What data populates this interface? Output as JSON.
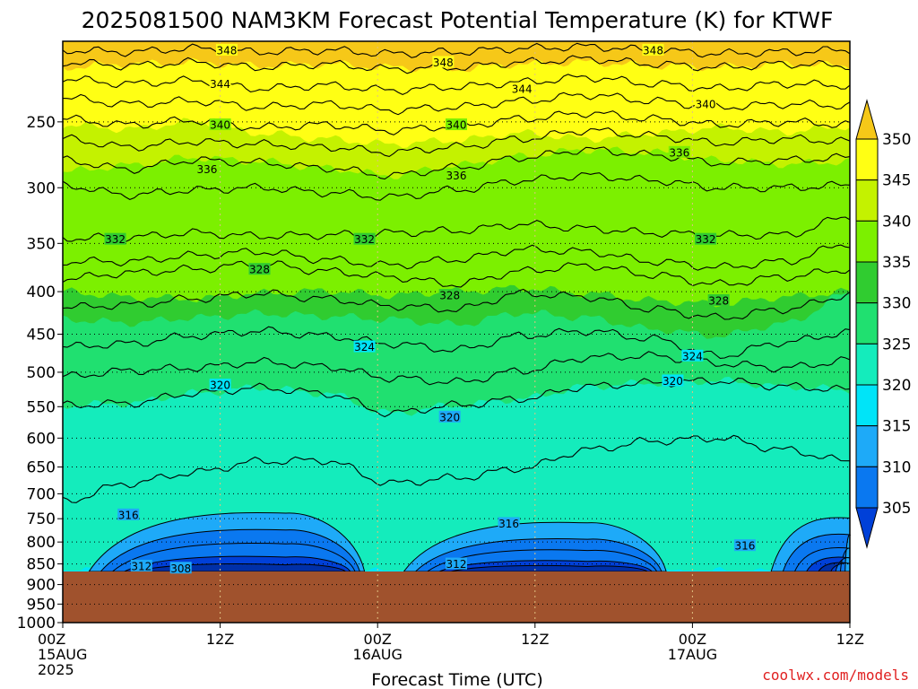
{
  "title": "2025081500 NAM3KM Forecast Potential Temperature (K) for KTWF",
  "credit": "coolwx.com/models",
  "chart_data": {
    "type": "contour",
    "title": "2025081500 NAM3KM Forecast Potential Temperature (K) for KTWF",
    "xlabel": "Forecast Time (UTC)",
    "ylabel": "",
    "xlim": [
      0,
      60
    ],
    "ylim": [
      1000,
      200
    ],
    "y_scale": "log",
    "x_ticks": [
      {
        "hour": 0,
        "lines": [
          "00Z",
          "15AUG",
          "2025"
        ]
      },
      {
        "hour": 12,
        "lines": [
          "12Z"
        ]
      },
      {
        "hour": 24,
        "lines": [
          "00Z",
          "16AUG"
        ]
      },
      {
        "hour": 36,
        "lines": [
          "12Z"
        ]
      },
      {
        "hour": 48,
        "lines": [
          "00Z",
          "17AUG"
        ]
      },
      {
        "hour": 60,
        "lines": [
          "12Z"
        ]
      }
    ],
    "y_ticks": [
      "250",
      "300",
      "350",
      "400",
      "450",
      "500",
      "550",
      "600",
      "650",
      "700",
      "750",
      "800",
      "850",
      "900",
      "950",
      "1000"
    ],
    "y_tick_values": [
      250,
      300,
      350,
      400,
      450,
      500,
      550,
      600,
      650,
      700,
      750,
      800,
      850,
      900,
      950,
      1000
    ],
    "grid": true,
    "colorbar": {
      "labels": [
        "350",
        "345",
        "340",
        "335",
        "330",
        "325",
        "320",
        "315",
        "310",
        "305"
      ],
      "levels": [
        305,
        310,
        315,
        320,
        325,
        330,
        335,
        340,
        345,
        350
      ],
      "colors": [
        "#0040d8",
        "#0a78f0",
        "#1eaaf8",
        "#00e4f8",
        "#14ecbc",
        "#20e070",
        "#30cc30",
        "#7cf000",
        "#c4f200",
        "#ffff14",
        "#f6c818"
      ]
    },
    "terrain": {
      "surface_pressure": 868,
      "color": "#a0522d"
    },
    "fill_bands": [
      {
        "theta": 346,
        "color": "#ffff14",
        "pressure_profile": [
          215,
          213,
          212,
          214,
          213,
          215,
          216,
          213,
          212,
          214,
          215,
          213,
          214
        ]
      },
      {
        "theta": 339,
        "color": "#c4f200",
        "pressure_profile": [
          252,
          255,
          250,
          258,
          262,
          266,
          263,
          258,
          262,
          258,
          254,
          257,
          253
        ]
      },
      {
        "theta": 335,
        "color": "#7cf000",
        "pressure_profile": [
          287,
          282,
          276,
          279,
          284,
          290,
          282,
          275,
          270,
          272,
          278,
          281,
          279
        ]
      },
      {
        "theta": 330,
        "color": "#30cc30",
        "pressure_profile": [
          400,
          406,
          408,
          402,
          399,
          404,
          400,
          396,
          402,
          410,
          414,
          406,
          400
        ]
      },
      {
        "theta": 325,
        "color": "#20e070",
        "pressure_profile": [
          432,
          436,
          430,
          425,
          428,
          432,
          438,
          424,
          430,
          444,
          452,
          437,
          402
        ]
      },
      {
        "theta": 320,
        "color": "#14ecbc",
        "pressure_profile": [
          548,
          545,
          530,
          522,
          530,
          560,
          548,
          538,
          520,
          515,
          512,
          520,
          525
        ]
      },
      {
        "theta": 315,
        "color": "#00e4f8",
        "pressure_profile": [
          868,
          868,
          868,
          868,
          868,
          868,
          868,
          868,
          868,
          868,
          868,
          868,
          868
        ]
      }
    ],
    "cold_pockets": [
      {
        "start_hour": 2,
        "end_hour": 23,
        "peak_hour": 17,
        "levels": [
          316,
          312,
          310,
          308,
          306
        ],
        "top_pressures": [
          735,
          770,
          800,
          830,
          848
        ]
      },
      {
        "start_hour": 26,
        "end_hour": 46,
        "peak_hour": 40,
        "levels": [
          316,
          312,
          310,
          308,
          306
        ],
        "top_pressures": [
          755,
          790,
          815,
          840,
          852
        ]
      },
      {
        "start_hour": 54,
        "end_hour": 60,
        "peak_hour": 60,
        "levels": [
          316,
          312,
          310,
          308,
          306
        ],
        "top_pressures": [
          745,
          780,
          810,
          832,
          845
        ]
      }
    ],
    "isentropes": [
      {
        "theta": 348,
        "pressure_profile": [
          205,
          206,
          204,
          206,
          205,
          207,
          206,
          204,
          203,
          205,
          207,
          206,
          205
        ]
      },
      {
        "theta": 346,
        "pressure_profile": [
          212,
          214,
          212,
          215,
          213,
          216,
          215,
          212,
          210,
          213,
          215,
          213,
          214
        ]
      },
      {
        "theta": 344,
        "pressure_profile": [
          222,
          225,
          223,
          228,
          226,
          229,
          227,
          224,
          221,
          225,
          228,
          225,
          226
        ]
      },
      {
        "theta": 342,
        "pressure_profile": [
          234,
          238,
          236,
          240,
          238,
          242,
          240,
          236,
          232,
          236,
          240,
          238,
          239
        ]
      },
      {
        "theta": 340,
        "pressure_profile": [
          248,
          252,
          249,
          254,
          252,
          256,
          253,
          248,
          244,
          248,
          252,
          250,
          252
        ]
      },
      {
        "theta": 338,
        "pressure_profile": [
          262,
          268,
          264,
          266,
          268,
          272,
          268,
          262,
          256,
          260,
          265,
          262,
          264
        ]
      },
      {
        "theta": 336,
        "pressure_profile": [
          278,
          285,
          278,
          280,
          284,
          290,
          284,
          276,
          270,
          274,
          280,
          278,
          276
        ]
      },
      {
        "theta": 334,
        "pressure_profile": [
          298,
          306,
          302,
          300,
          304,
          308,
          302,
          294,
          290,
          294,
          300,
          300,
          298
        ]
      },
      {
        "theta": 332,
        "pressure_profile": [
          345,
          344,
          340,
          343,
          342,
          340,
          338,
          332,
          336,
          340,
          342,
          342,
          325
        ]
      },
      {
        "theta": 330,
        "pressure_profile": [
          368,
          368,
          362,
          358,
          366,
          372,
          366,
          356,
          358,
          368,
          374,
          368,
          350
        ]
      },
      {
        "theta": 328,
        "pressure_profile": [
          386,
          380,
          376,
          370,
          378,
          384,
          392,
          378,
          372,
          382,
          392,
          384,
          376
        ]
      },
      {
        "theta": 326,
        "pressure_profile": [
          418,
          415,
          408,
          402,
          408,
          416,
          420,
          402,
          406,
          420,
          430,
          420,
          404
        ]
      },
      {
        "theta": 324,
        "pressure_profile": [
          466,
          462,
          452,
          446,
          452,
          462,
          470,
          452,
          446,
          456,
          478,
          460,
          448
        ]
      },
      {
        "theta": 322,
        "pressure_profile": [
          506,
          498,
          494,
          486,
          492,
          508,
          514,
          498,
          480,
          478,
          488,
          494,
          484
        ]
      },
      {
        "theta": 320,
        "pressure_profile": [
          548,
          545,
          530,
          522,
          530,
          560,
          548,
          538,
          520,
          515,
          512,
          520,
          525
        ]
      },
      {
        "theta": 318,
        "pressure_profile": [
          715,
          680,
          660,
          640,
          638,
          680,
          670,
          652,
          620,
          605,
          600,
          620,
          640
        ]
      }
    ],
    "contour_labels": [
      {
        "text": "348",
        "hour": 12.5,
        "pressure": 205
      },
      {
        "text": "348",
        "hour": 29,
        "pressure": 212
      },
      {
        "text": "348",
        "hour": 45,
        "pressure": 205
      },
      {
        "text": "344",
        "hour": 12,
        "pressure": 225
      },
      {
        "text": "344",
        "hour": 35,
        "pressure": 228
      },
      {
        "text": "340",
        "hour": 12,
        "pressure": 252
      },
      {
        "text": "340",
        "hour": 30,
        "pressure": 252
      },
      {
        "text": "340",
        "hour": 49,
        "pressure": 238
      },
      {
        "text": "336",
        "hour": 11,
        "pressure": 285
      },
      {
        "text": "336",
        "hour": 30,
        "pressure": 290
      },
      {
        "text": "336",
        "hour": 47,
        "pressure": 272
      },
      {
        "text": "332",
        "hour": 4,
        "pressure": 346
      },
      {
        "text": "332",
        "hour": 23,
        "pressure": 346
      },
      {
        "text": "332",
        "hour": 49,
        "pressure": 346
      },
      {
        "text": "328",
        "hour": 15,
        "pressure": 376
      },
      {
        "text": "328",
        "hour": 29.5,
        "pressure": 404
      },
      {
        "text": "328",
        "hour": 50,
        "pressure": 410
      },
      {
        "text": "324",
        "hour": 23,
        "pressure": 466
      },
      {
        "text": "324",
        "hour": 48,
        "pressure": 478
      },
      {
        "text": "320",
        "hour": 12,
        "pressure": 518
      },
      {
        "text": "320",
        "hour": 29.5,
        "pressure": 566
      },
      {
        "text": "320",
        "hour": 46.5,
        "pressure": 512
      },
      {
        "text": "316",
        "hour": 5,
        "pressure": 742
      },
      {
        "text": "316",
        "hour": 34,
        "pressure": 760
      },
      {
        "text": "316",
        "hour": 52,
        "pressure": 808
      },
      {
        "text": "312",
        "hour": 6,
        "pressure": 855
      },
      {
        "text": "312",
        "hour": 30,
        "pressure": 850
      },
      {
        "text": "308",
        "hour": 9,
        "pressure": 860
      }
    ]
  }
}
